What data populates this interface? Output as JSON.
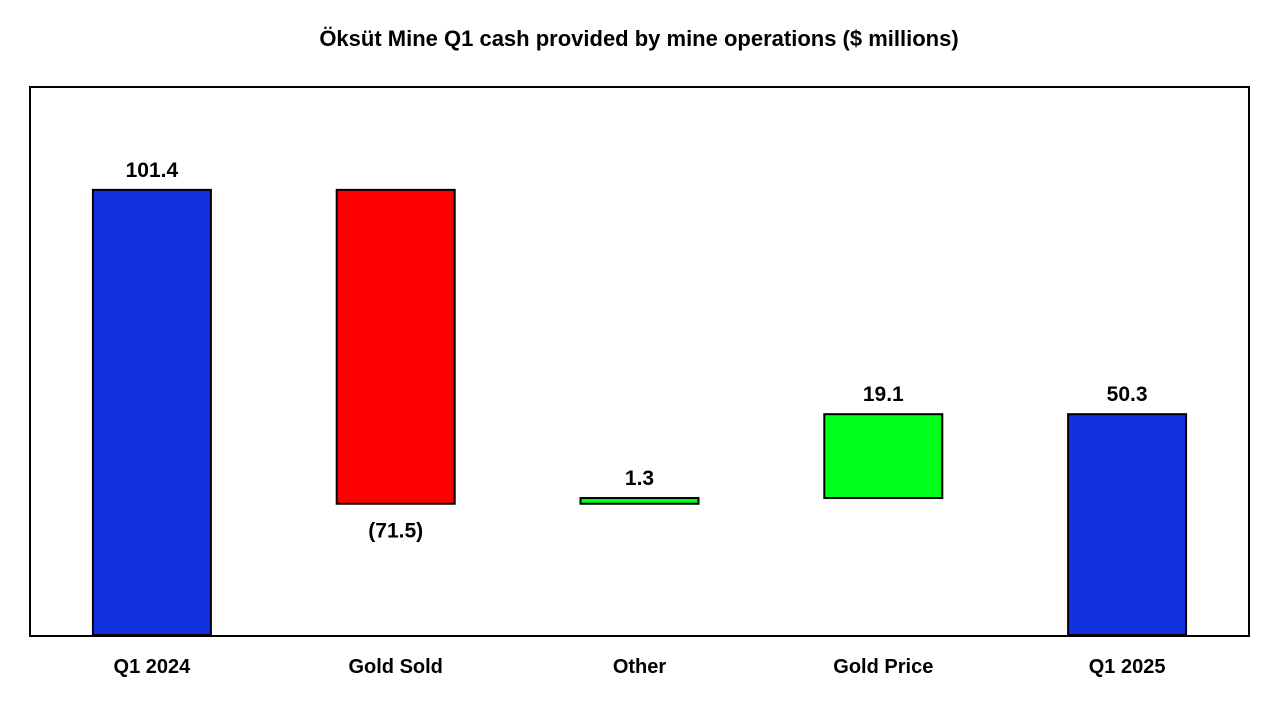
{
  "chart_data": {
    "type": "bar",
    "subtype": "waterfall",
    "title": "Öksüt Mine Q1 cash provided by mine operations ($ millions)",
    "xlabel": "",
    "ylabel": "",
    "grid": false,
    "legend": "none",
    "ylim": [
      0,
      120
    ],
    "categories": [
      "Q1 2024",
      "Gold Sold",
      "Other",
      "Gold Price",
      "Q1 2025"
    ],
    "values": [
      101.4,
      -71.5,
      1.3,
      19.1,
      50.3
    ],
    "bar_kinds": [
      "total",
      "decrease",
      "increase",
      "increase",
      "total"
    ],
    "data_labels": [
      "101.4",
      "(71.5)",
      "1.3",
      "19.1",
      "50.3"
    ],
    "colors": {
      "total": "#1130e0",
      "decrease": "#ff0000",
      "increase": "#00ff1a"
    }
  }
}
